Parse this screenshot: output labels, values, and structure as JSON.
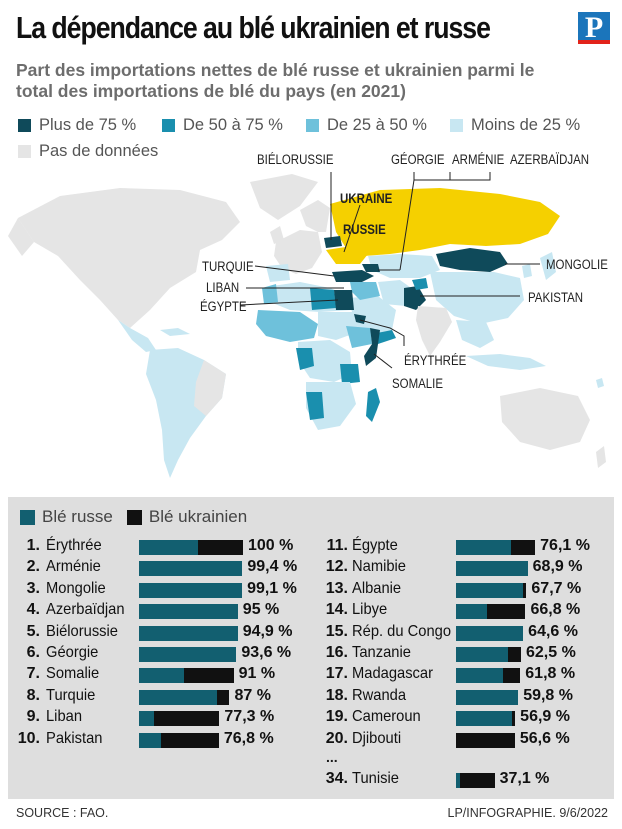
{
  "header": {
    "title": "La dépendance au blé ukrainien et russe",
    "logo": "P",
    "subtitle": "Part des importations nettes de blé russe et ukrainien parmi le total des importations de blé du pays (en 2021)"
  },
  "map_legend": [
    {
      "label": "Plus de 75 %",
      "color": "#0f4a5a"
    },
    {
      "label": "De 50 à 75 %",
      "color": "#1a8fae"
    },
    {
      "label": "De 25 à 50 %",
      "color": "#6ec1db"
    },
    {
      "label": "Moins de 25 %",
      "color": "#c8e7f2"
    },
    {
      "label": "Pas de données",
      "color": "#e5e5e5"
    }
  ],
  "colors": {
    "russia_ukraine": "#f5d000",
    "russian_wheat": "#125f70",
    "ukrainian_wheat": "#111111",
    "panel_bg": "#dedede"
  },
  "map_labels": {
    "bielorussie": "BIÉLORUSSIE",
    "georgie": "GÉORGIE",
    "armenie": "ARMÉNIE",
    "azerbaidjan": "AZERBAÏDJAN",
    "ukraine": "UKRAINE",
    "russie": "RUSSIE",
    "mongolie": "MONGOLIE",
    "turquie": "TURQUIE",
    "liban": "LIBAN",
    "pakistan": "PAKISTAN",
    "egypte": "ÉGYPTE",
    "erythree": "ÉRYTHRÉE",
    "somalie": "SOMALIE"
  },
  "chart_data": {
    "type": "bar",
    "orientation": "horizontal",
    "stacked": true,
    "title": "",
    "series_legend": [
      {
        "name": "Blé russe",
        "color": "#125f70"
      },
      {
        "name": "Blé ukrainien",
        "color": "#111111"
      }
    ],
    "xlim": [
      0,
      100
    ],
    "rows": [
      {
        "rank": "1.",
        "country": "Érythrée",
        "russe": 57,
        "ukrainien": 43,
        "total": "100 %"
      },
      {
        "rank": "2.",
        "country": "Arménie",
        "russe": 99.4,
        "ukrainien": 0,
        "total": "99,4 %"
      },
      {
        "rank": "3.",
        "country": "Mongolie",
        "russe": 99.1,
        "ukrainien": 0,
        "total": "99,1 %"
      },
      {
        "rank": "4.",
        "country": "Azerbaïdjan",
        "russe": 95,
        "ukrainien": 0,
        "total": "95 %"
      },
      {
        "rank": "5.",
        "country": "Biélorussie",
        "russe": 94.9,
        "ukrainien": 0,
        "total": "94,9 %"
      },
      {
        "rank": "6.",
        "country": "Géorgie",
        "russe": 93.6,
        "ukrainien": 0,
        "total": "93,6 %"
      },
      {
        "rank": "7.",
        "country": "Somalie",
        "russe": 43,
        "ukrainien": 48,
        "total": "91 %"
      },
      {
        "rank": "8.",
        "country": "Turquie",
        "russe": 75,
        "ukrainien": 12,
        "total": "87 %"
      },
      {
        "rank": "9.",
        "country": "Liban",
        "russe": 14,
        "ukrainien": 63.3,
        "total": "77,3 %"
      },
      {
        "rank": "10.",
        "country": "Pakistan",
        "russe": 21,
        "ukrainien": 55.8,
        "total": "76,8 %"
      },
      {
        "rank": "11.",
        "country": "Égypte",
        "russe": 53,
        "ukrainien": 23.1,
        "total": "76,1 %"
      },
      {
        "rank": "12.",
        "country": "Namibie",
        "russe": 68.9,
        "ukrainien": 0,
        "total": "68,9 %"
      },
      {
        "rank": "13.",
        "country": "Albanie",
        "russe": 64,
        "ukrainien": 3.7,
        "total": "67,7 %"
      },
      {
        "rank": "14.",
        "country": "Libye",
        "russe": 30,
        "ukrainien": 36.8,
        "total": "66,8 %"
      },
      {
        "rank": "15.",
        "country": "Rép. du Congo",
        "russe": 64.6,
        "ukrainien": 0,
        "total": "64,6 %"
      },
      {
        "rank": "16.",
        "country": "Tanzanie",
        "russe": 50,
        "ukrainien": 12.5,
        "total": "62,5 %"
      },
      {
        "rank": "17.",
        "country": "Madagascar",
        "russe": 45,
        "ukrainien": 16.8,
        "total": "61,8 %"
      },
      {
        "rank": "18.",
        "country": "Rwanda",
        "russe": 59.8,
        "ukrainien": 0,
        "total": "59,8 %"
      },
      {
        "rank": "19.",
        "country": "Cameroun",
        "russe": 54,
        "ukrainien": 2.9,
        "total": "56,9 %"
      },
      {
        "rank": "20.",
        "country": "Djibouti",
        "russe": 0,
        "ukrainien": 56.6,
        "total": "56,6 %"
      },
      {
        "rank": "34.",
        "country": "Tunisie",
        "russe": 4,
        "ukrainien": 33.1,
        "total": "37,1 %"
      }
    ],
    "ellipsis": "..."
  },
  "footer": {
    "source": "SOURCE : FAO.",
    "credit": "LP/INFOGRAPHIE.  9/6/2022"
  }
}
